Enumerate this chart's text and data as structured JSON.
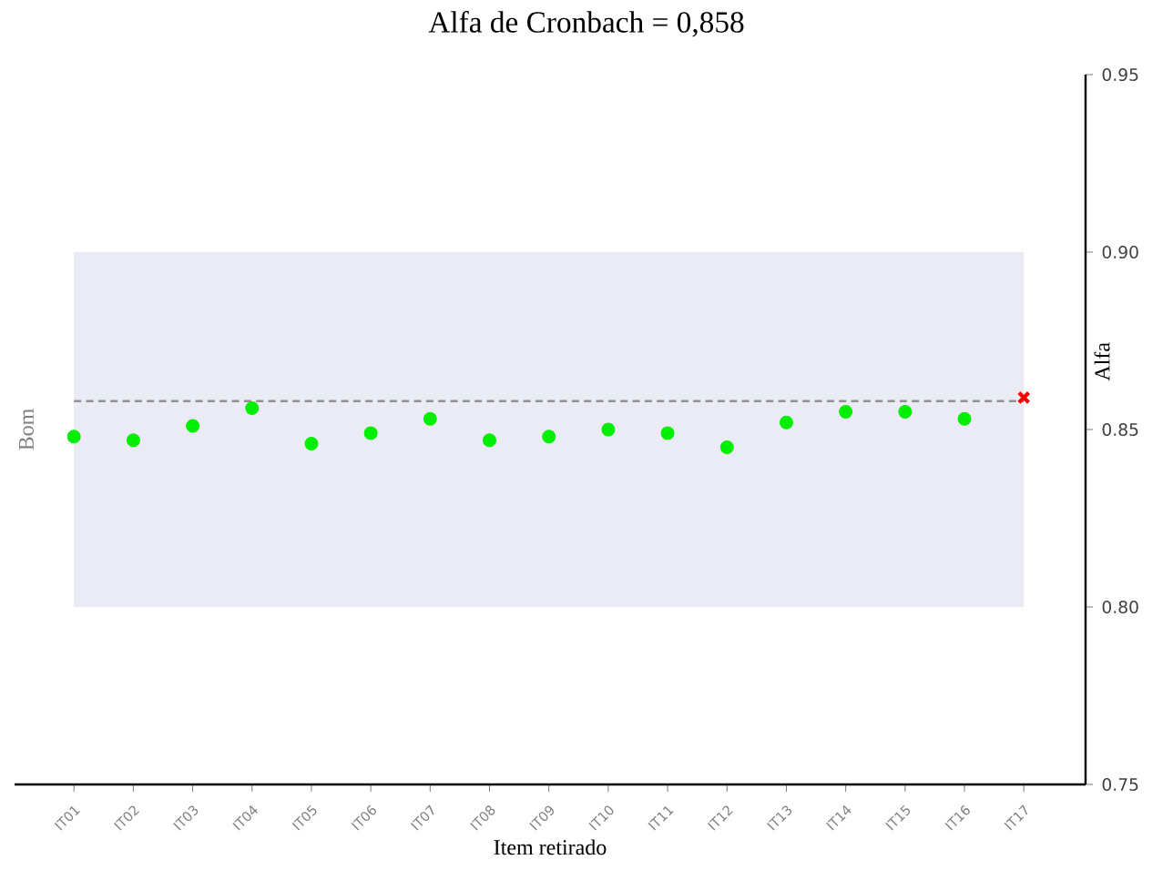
{
  "chart_data": {
    "type": "scatter",
    "title": "Alfa de Cronbach = 0,858",
    "xlabel": "Item retirado",
    "ylabel": "Alfa",
    "categories": [
      "IT01",
      "IT02",
      "IT03",
      "IT04",
      "IT05",
      "IT06",
      "IT07",
      "IT08",
      "IT09",
      "IT10",
      "IT11",
      "IT12",
      "IT13",
      "IT14",
      "IT15",
      "IT16",
      "IT17"
    ],
    "series": [
      {
        "color": "#00ee00",
        "marker": "circle",
        "values": [
          0.848,
          0.847,
          0.851,
          0.856,
          0.846,
          0.849,
          0.853,
          0.847,
          0.848,
          0.85,
          0.849,
          0.845,
          0.852,
          0.855,
          0.855,
          0.853,
          null
        ]
      },
      {
        "color": "#ff0000",
        "marker": "cross",
        "values": [
          null,
          null,
          null,
          null,
          null,
          null,
          null,
          null,
          null,
          null,
          null,
          null,
          null,
          null,
          null,
          null,
          0.859
        ]
      }
    ],
    "ylim": [
      0.75,
      0.95
    ],
    "yticks": [
      {
        "value": 0.75,
        "label": "0.75"
      },
      {
        "value": 0.8,
        "label": "0.80"
      },
      {
        "value": 0.85,
        "label": "0.85"
      },
      {
        "value": 0.9,
        "label": "0.90"
      },
      {
        "value": 0.95,
        "label": "0.95"
      }
    ],
    "ref_lines": [
      {
        "axis": "y",
        "value": 0.858,
        "color": "#909090",
        "line_style": "dashed"
      }
    ],
    "bands": [
      {
        "axis": "y",
        "from": 0.8,
        "to": 0.9,
        "label": "Bom",
        "color": "#ebebf5"
      }
    ],
    "grid": false
  }
}
